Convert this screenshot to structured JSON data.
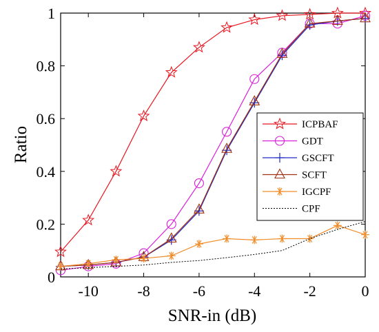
{
  "chart_data": {
    "type": "line",
    "title": "",
    "xlabel": "SNR-in (dB)",
    "ylabel": "Ratio",
    "xlim": [
      -11,
      0
    ],
    "ylim": [
      0,
      1
    ],
    "xticks": [
      -10,
      -8,
      -6,
      -4,
      -2,
      0
    ],
    "xtick_labels": [
      "-10",
      "-8",
      "-6",
      "-4",
      "-2",
      "0"
    ],
    "yticks": [
      0,
      0.2,
      0.4,
      0.6,
      0.8,
      1
    ],
    "ytick_labels": [
      "0",
      "0.2",
      "0.4",
      "0.6",
      "0.8",
      "1"
    ],
    "grid": false,
    "legend_position": "right",
    "x": [
      -11,
      -10,
      -9,
      -8,
      -7,
      -6,
      -5,
      -4,
      -3,
      -2,
      -1,
      0
    ],
    "series": [
      {
        "name": "ICPBAF",
        "color": "#e8141e",
        "marker": "star",
        "dashed": false,
        "values": [
          0.095,
          0.215,
          0.4,
          0.61,
          0.775,
          0.87,
          0.945,
          0.975,
          0.99,
          0.995,
          1.0,
          1.0
        ]
      },
      {
        "name": "GDT",
        "color": "#d81ed8",
        "marker": "circle",
        "dashed": false,
        "values": [
          0.025,
          0.04,
          0.05,
          0.09,
          0.2,
          0.355,
          0.55,
          0.75,
          0.85,
          0.96,
          0.96,
          0.99
        ]
      },
      {
        "name": "GSCFT",
        "color": "#1e28c8",
        "marker": "plus",
        "dashed": false,
        "values": [
          0.04,
          0.045,
          0.055,
          0.075,
          0.14,
          0.25,
          0.48,
          0.66,
          0.84,
          0.955,
          0.97,
          0.98
        ]
      },
      {
        "name": "SCFT",
        "color": "#a03010",
        "marker": "triangle",
        "dashed": false,
        "values": [
          0.04,
          0.045,
          0.055,
          0.075,
          0.145,
          0.255,
          0.485,
          0.665,
          0.845,
          0.96,
          0.97,
          0.98
        ]
      },
      {
        "name": "IGCPF",
        "color": "#f08c28",
        "marker": "asterisk",
        "dashed": false,
        "values": [
          0.04,
          0.05,
          0.065,
          0.07,
          0.08,
          0.125,
          0.145,
          0.14,
          0.145,
          0.145,
          0.195,
          0.16
        ]
      },
      {
        "name": "CPF",
        "color": "#000000",
        "marker": "none",
        "dashed": true,
        "values": [
          0.03,
          0.035,
          0.04,
          0.045,
          0.055,
          0.062,
          0.073,
          0.085,
          0.1,
          0.145,
          0.18,
          0.21
        ]
      }
    ]
  }
}
